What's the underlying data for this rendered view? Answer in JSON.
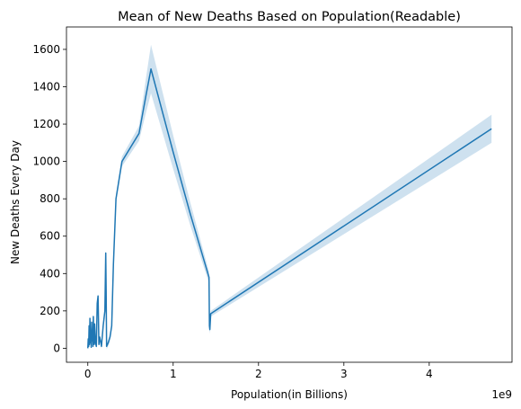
{
  "chart_data": {
    "type": "line",
    "title": "Mean of New Deaths Based on Population(Readable)",
    "xlabel": "Population(in Billions)",
    "ylabel": "New Deaths Every Day",
    "x_offset_label": "1e9",
    "xlim": [
      -0.25,
      4.97
    ],
    "ylim": [
      -75,
      1720
    ],
    "x_ticks": [
      0,
      1,
      2,
      3,
      4
    ],
    "y_ticks": [
      0,
      200,
      400,
      600,
      800,
      1000,
      1200,
      1400,
      1600
    ],
    "grid": false,
    "line_color": "#1f77b4",
    "band_color": "#1f77b4",
    "series": [
      {
        "points": [
          [
            0.0,
            0
          ],
          [
            0.005,
            50
          ],
          [
            0.01,
            10
          ],
          [
            0.015,
            120
          ],
          [
            0.02,
            20
          ],
          [
            0.025,
            160
          ],
          [
            0.03,
            30
          ],
          [
            0.035,
            80
          ],
          [
            0.04,
            5
          ],
          [
            0.045,
            140
          ],
          [
            0.05,
            40
          ],
          [
            0.055,
            90
          ],
          [
            0.06,
            10
          ],
          [
            0.065,
            170
          ],
          [
            0.07,
            60
          ],
          [
            0.075,
            20
          ],
          [
            0.08,
            130
          ],
          [
            0.09,
            30
          ],
          [
            0.1,
            10
          ],
          [
            0.11,
            240
          ],
          [
            0.12,
            280
          ],
          [
            0.13,
            20
          ],
          [
            0.14,
            60
          ],
          [
            0.16,
            10
          ],
          [
            0.18,
            120
          ],
          [
            0.2,
            200
          ],
          [
            0.21,
            510
          ],
          [
            0.215,
            300
          ],
          [
            0.22,
            10
          ],
          [
            0.24,
            30
          ],
          [
            0.26,
            60
          ],
          [
            0.28,
            120
          ],
          [
            0.3,
            450
          ],
          [
            0.33,
            800
          ],
          [
            0.4,
            1000
          ],
          [
            0.6,
            1150
          ],
          [
            0.68,
            1350
          ],
          [
            0.74,
            1495
          ],
          [
            1.0,
            1050
          ],
          [
            1.2,
            720
          ],
          [
            1.42,
            380
          ],
          [
            1.425,
            120
          ],
          [
            1.43,
            100
          ],
          [
            1.44,
            185
          ],
          [
            4.73,
            1175
          ]
        ],
        "ci_halfwidth": [
          [
            0.0,
            5
          ],
          [
            0.3,
            20
          ],
          [
            0.6,
            40
          ],
          [
            0.74,
            130
          ],
          [
            1.0,
            90
          ],
          [
            1.42,
            30
          ],
          [
            1.44,
            15
          ],
          [
            4.73,
            75
          ]
        ]
      }
    ]
  }
}
